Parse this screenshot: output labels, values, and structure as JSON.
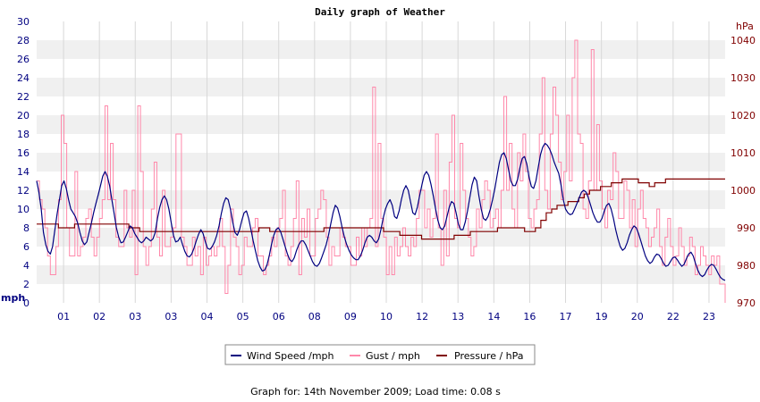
{
  "chart_data": {
    "type": "line",
    "title": "Daily graph of Weather",
    "left_axis": {
      "unit": "mph",
      "ylim": [
        0,
        30
      ],
      "ticks": [
        "0",
        "2",
        "4",
        "6",
        "8",
        "10",
        "12",
        "14",
        "16",
        "18",
        "20",
        "22",
        "24",
        "26",
        "28",
        "30"
      ]
    },
    "right_axis": {
      "unit": "hPa",
      "ylim": [
        970,
        1045
      ],
      "ticks": [
        "970",
        "980",
        "990",
        "1000",
        "1010",
        "1020",
        "1030",
        "1040"
      ]
    },
    "x_ticks": [
      "01",
      "02",
      "03",
      "03",
      "04",
      "05",
      "06",
      "08",
      "09",
      "10",
      "12",
      "13",
      "14",
      "16",
      "17",
      "19",
      "20",
      "22",
      "23"
    ],
    "grid": true,
    "legend_position": "bottom",
    "series": [
      {
        "name": "Wind Speed /mph",
        "color": "#000080",
        "axis": "left",
        "values": [
          13,
          11.8,
          10,
          7.5,
          6.2,
          5.5,
          5.2,
          6,
          7.8,
          9.5,
          11,
          12.5,
          13,
          12.2,
          11,
          10,
          9.6,
          9.2,
          8.5,
          7.5,
          6.6,
          6.2,
          6.5,
          7.5,
          8.5,
          9.6,
          10.6,
          11.5,
          12.5,
          13.5,
          14,
          13.5,
          12.5,
          11,
          9.5,
          8,
          7,
          6.4,
          6.5,
          7,
          7.6,
          8.2,
          8,
          7.4,
          7,
          6.6,
          6.4,
          6.6,
          7,
          6.8,
          6.6,
          6.8,
          7.5,
          9,
          10.2,
          11,
          11.4,
          11,
          10,
          8.6,
          7.2,
          6.5,
          6.6,
          7,
          6.2,
          5.5,
          5,
          4.9,
          5.2,
          5.8,
          6.6,
          7.3,
          7.8,
          7.4,
          6.5,
          5.8,
          5.7,
          6,
          6.5,
          7.2,
          8.2,
          9.5,
          10.6,
          11.2,
          11,
          10,
          8.6,
          7.5,
          7.2,
          7.8,
          8.8,
          9.6,
          9.8,
          9,
          7.8,
          6.6,
          5.5,
          4.5,
          3.8,
          3.4,
          3.5,
          4,
          5,
          6.2,
          7.2,
          7.8,
          8,
          7.6,
          6.8,
          6,
          5.2,
          4.6,
          4.4,
          4.8,
          5.6,
          6.2,
          6.6,
          6.6,
          6.2,
          5.6,
          5,
          4.4,
          4,
          3.9,
          4.2,
          4.8,
          5.5,
          6.2,
          7.2,
          8.4,
          9.6,
          10.4,
          10.1,
          9.2,
          8,
          7,
          6.2,
          5.6,
          5.1,
          4.8,
          4.6,
          4.6,
          5,
          5.6,
          6.4,
          7,
          7.2,
          7,
          6.6,
          6.4,
          6.8,
          7.8,
          9,
          10,
          10.6,
          11,
          10.4,
          9.2,
          9,
          9.8,
          11,
          12,
          12.5,
          12,
          10.8,
          9.6,
          9.4,
          10.2,
          11.4,
          12.6,
          13.6,
          14,
          13.6,
          12.6,
          11.4,
          10,
          8.8,
          8,
          7.8,
          8.2,
          9.2,
          10.2,
          10.8,
          10.6,
          9.6,
          8.4,
          7.8,
          7.8,
          8.6,
          9.8,
          11.2,
          12.6,
          13.4,
          13,
          11.4,
          10,
          9,
          8.8,
          9.2,
          10,
          11,
          12.2,
          13.6,
          15,
          15.8,
          16,
          15.4,
          14.2,
          13,
          12.5,
          12.5,
          13.2,
          14.4,
          15.4,
          15.6,
          14.8,
          13.4,
          12.4,
          12.2,
          13,
          14.4,
          15.8,
          16.6,
          17,
          16.8,
          16.4,
          15.8,
          15,
          14.4,
          13.8,
          12.6,
          11,
          10,
          9.6,
          9.4,
          9.5,
          10,
          10.6,
          11.2,
          11.8,
          12,
          11.8,
          11.2,
          10.4,
          9.6,
          9,
          8.6,
          8.6,
          9,
          9.8,
          10.4,
          10.6,
          10,
          9,
          7.8,
          6.8,
          6,
          5.6,
          5.8,
          6.4,
          7.2,
          7.8,
          8.2,
          8,
          7.4,
          6.6,
          5.8,
          5,
          4.5,
          4.2,
          4.4,
          4.9,
          5.2,
          5.1,
          4.7,
          4.2,
          3.9,
          4,
          4.4,
          4.8,
          4.9,
          4.6,
          4.2,
          3.9,
          4.1,
          4.7,
          5.2,
          5.4,
          5,
          4.2,
          3.5,
          3,
          2.8,
          3,
          3.5,
          3.9,
          4.1,
          4,
          3.6,
          3.1,
          2.7,
          2.5,
          2.4
        ]
      },
      {
        "name": "Gust / mph",
        "color": "#FF88AA",
        "axis": "left",
        "values": [
          13,
          11,
          10,
          8,
          5,
          3,
          3,
          6,
          11,
          20,
          17,
          8,
          5,
          5,
          14,
          5,
          6,
          7,
          9,
          10,
          7,
          5,
          7,
          9,
          11,
          21,
          11,
          17,
          11,
          7,
          6,
          6,
          12,
          8,
          7,
          12,
          3,
          21,
          14,
          6,
          4,
          6,
          10,
          15,
          7,
          5,
          12,
          6,
          6,
          7,
          8,
          18,
          18,
          7,
          6,
          4,
          4,
          7,
          5,
          6,
          3,
          7,
          4,
          5,
          6,
          5,
          6,
          9,
          6,
          1,
          4,
          10,
          7,
          6,
          3,
          4,
          7,
          6,
          6,
          8,
          9,
          5,
          5,
          3,
          4,
          5,
          7,
          6,
          8,
          9,
          12,
          5,
          4,
          6,
          9,
          13,
          3,
          9,
          7,
          10,
          5,
          5,
          9,
          10,
          12,
          11,
          7,
          4,
          6,
          5,
          5,
          8,
          7,
          6,
          6,
          4,
          4,
          7,
          5,
          8,
          6,
          8,
          9,
          23,
          6,
          17,
          9,
          7,
          3,
          6,
          3,
          7,
          5,
          6,
          8,
          6,
          5,
          7,
          6,
          9,
          12,
          12,
          8,
          10,
          7,
          9,
          18,
          8,
          4,
          12,
          5,
          15,
          20,
          9,
          8,
          17,
          12,
          9,
          7,
          5,
          6,
          10,
          8,
          11,
          13,
          12,
          8,
          9,
          10,
          8,
          12,
          22,
          12,
          17,
          10,
          8,
          16,
          13,
          18,
          14,
          9,
          8,
          10,
          11,
          18,
          24,
          12,
          10,
          18,
          23,
          20,
          15,
          11,
          14,
          20,
          13,
          24,
          28,
          18,
          17,
          10,
          9,
          13,
          27,
          12,
          19,
          13,
          10,
          8,
          12,
          11,
          16,
          14,
          9,
          9,
          13,
          12,
          8,
          11,
          6,
          10,
          12,
          9,
          8,
          6,
          7,
          8,
          10,
          6,
          4,
          7,
          9,
          6,
          4,
          5,
          8,
          6,
          4,
          5,
          7,
          6,
          3,
          4,
          6,
          5,
          4,
          3,
          5,
          4,
          5,
          2,
          2,
          0
        ]
      },
      {
        "name": "Pressure / hPa",
        "color": "#800000",
        "axis": "right",
        "values": [
          991,
          991,
          991,
          991,
          990,
          990,
          990,
          991,
          991,
          991,
          991,
          991,
          991,
          991,
          991,
          991,
          991,
          990,
          990,
          989,
          989,
          989,
          989,
          989,
          989,
          989,
          989,
          989,
          989,
          989,
          989,
          989,
          989,
          989,
          989,
          989,
          989,
          989,
          989,
          989,
          989,
          990,
          990,
          989,
          989,
          989,
          989,
          989,
          989,
          989,
          989,
          989,
          989,
          990,
          990,
          990,
          990,
          990,
          990,
          990,
          990,
          990,
          990,
          990,
          989,
          989,
          989,
          988,
          988,
          988,
          988,
          987,
          987,
          987,
          987,
          987,
          987,
          988,
          988,
          988,
          989,
          989,
          989,
          989,
          989,
          990,
          990,
          990,
          990,
          990,
          989,
          989,
          990,
          992,
          994,
          995,
          996,
          996,
          997,
          997,
          998,
          999,
          1000,
          1000,
          1001,
          1001,
          1002,
          1002,
          1003,
          1003,
          1003,
          1002,
          1002,
          1001,
          1002,
          1002,
          1003,
          1003,
          1003,
          1003,
          1003,
          1003,
          1003,
          1003,
          1003,
          1003,
          1003,
          1003
        ]
      }
    ]
  },
  "legend": {
    "items": [
      {
        "label": "Wind Speed /mph",
        "color": "#000080"
      },
      {
        "label": "Gust / mph",
        "color": "#FF88AA"
      },
      {
        "label": "Pressure / hPa",
        "color": "#800000"
      }
    ]
  },
  "footer": {
    "text": "Graph for: 14th November 2009; Load time: 0.08 s"
  }
}
